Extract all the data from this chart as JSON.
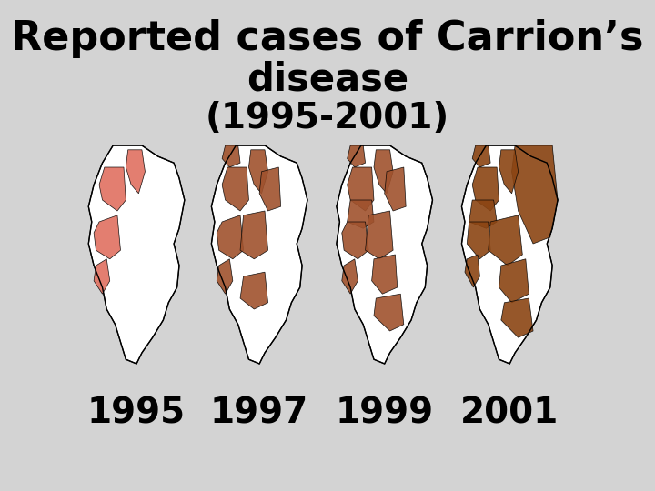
{
  "background_color": "#d3d3d3",
  "title_line1": "Reported cases of Carrion’s",
  "title_line2": "disease",
  "title_line3": "(1995-2001)",
  "title_fontsize": 32,
  "title_fontsize2": 30,
  "title_fontsize3": 28,
  "years": [
    "1995",
    "1997",
    "1999",
    "2001"
  ],
  "year_fontsize": 28,
  "map_color_1995": "#e07060",
  "map_color_1997": "#a0522d",
  "map_color_1999": "#a0522d",
  "map_color_2001": "#8b4513",
  "outline_color": "#000000",
  "highlight_outline": "#000000",
  "map_bg": "#ffffff"
}
